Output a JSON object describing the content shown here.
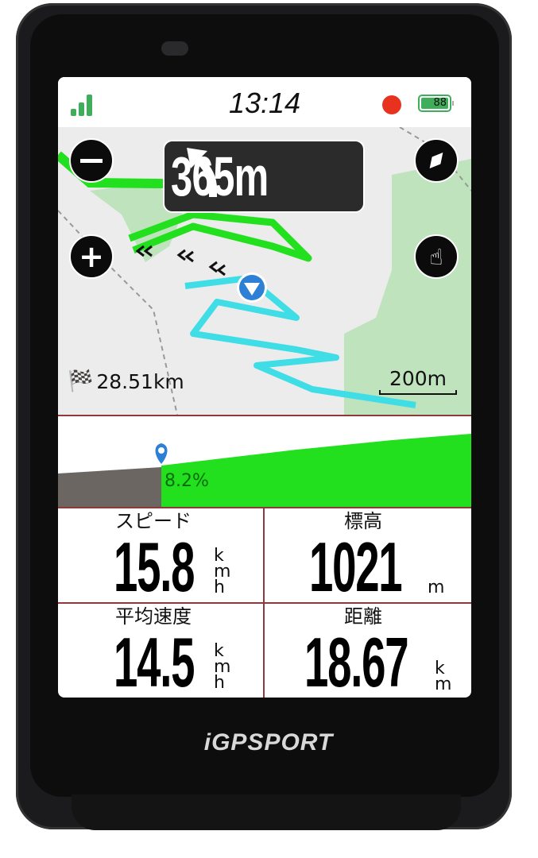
{
  "device": {
    "brand": "iGPSPORT"
  },
  "status_bar": {
    "time": "13:14",
    "battery": "88",
    "signal_bars": 3,
    "recording": true,
    "colors": {
      "signal": "#3fae5a",
      "record": "#e8321e"
    }
  },
  "map": {
    "turn": {
      "direction": "left",
      "icon": "turn-left-arrow-icon",
      "distance": "365m"
    },
    "buttons": {
      "zoom_out": "minus-icon",
      "zoom_in": "plus-icon",
      "compass": "compass-icon",
      "pan": "hand-pointer-icon"
    },
    "remaining_distance": "28.51km",
    "scale": "200m"
  },
  "elevation_profile": {
    "grade": "8.2%",
    "colors": {
      "climbed": "#6b6662",
      "ahead": "#22e01e",
      "marker": "#2e7fd6"
    }
  },
  "fields": [
    {
      "label": "スピード",
      "value": "15.8",
      "unit": [
        "k",
        "m",
        "h"
      ]
    },
    {
      "label": "標高",
      "value": "1021",
      "unit": [
        "m"
      ]
    },
    {
      "label": "平均速度",
      "value": "14.5",
      "unit": [
        "k",
        "m",
        "h"
      ]
    },
    {
      "label": "距離",
      "value": "18.67",
      "unit": [
        "k",
        "m"
      ]
    }
  ]
}
